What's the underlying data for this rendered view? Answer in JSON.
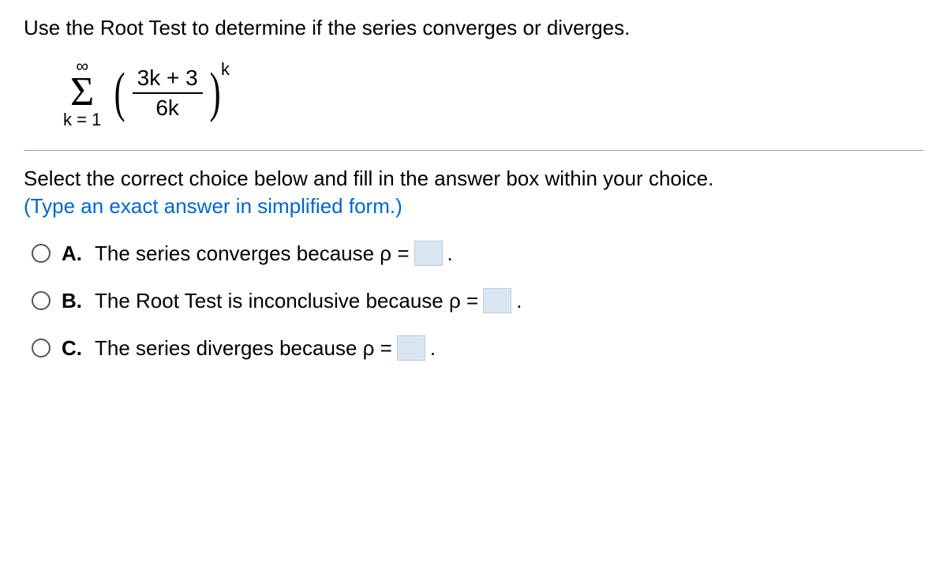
{
  "question": "Use the Root Test to determine if the series converges or diverges.",
  "series": {
    "sigma_upper": "∞",
    "sigma_lower": "k = 1",
    "fraction_numerator": "3k + 3",
    "fraction_denominator": "6k",
    "exponent": "k"
  },
  "instruction_line1": "Select the correct choice below and fill in the answer box within your choice.",
  "instruction_line2": "(Type an exact answer in simplified form.)",
  "options": {
    "A": {
      "label": "A.",
      "text_before": "The series converges because ρ =",
      "text_after": "."
    },
    "B": {
      "label": "B.",
      "text_before": "The Root Test is inconclusive because ρ =",
      "text_after": "."
    },
    "C": {
      "label": "C.",
      "text_before": "The series diverges because ρ =",
      "text_after": "."
    }
  },
  "colors": {
    "text": "#000000",
    "hint": "#0066cc",
    "answer_box_bg": "#d9e6f2",
    "answer_box_border": "#b8cde0",
    "divider": "#999999",
    "radio_border": "#555555",
    "background": "#ffffff"
  },
  "typography": {
    "body_fontsize": 26,
    "math_fontsize": 28,
    "sigma_fontsize": 52,
    "exponent_fontsize": 22
  }
}
